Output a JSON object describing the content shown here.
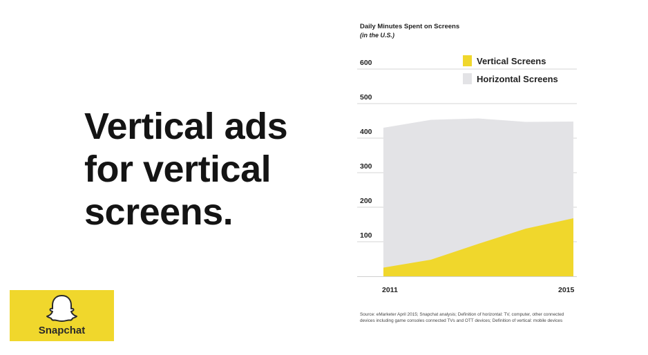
{
  "headline": {
    "lines": [
      "Vertical ads",
      "for vertical",
      "screens."
    ]
  },
  "logo": {
    "label": "Snapchat",
    "icon": "ghost-icon",
    "background": "#f0d72c"
  },
  "chart_data": {
    "type": "area",
    "title": "Daily Minutes Spent on Screens",
    "subtitle": "(in the U.S.)",
    "x": [
      2011,
      2012,
      2013,
      2014,
      2015
    ],
    "x_tick_labels": [
      "2011",
      "2015"
    ],
    "y_ticks": [
      100,
      200,
      300,
      400,
      500,
      600
    ],
    "y_tick_labels": [
      "100",
      "200",
      "300",
      "400",
      "500",
      "600"
    ],
    "ylim": [
      0,
      650
    ],
    "xlim": [
      2011,
      2015
    ],
    "grid": "horizontal",
    "legend_placement": "top-right",
    "series": [
      {
        "name": "Horizontal Screens",
        "values": [
          430,
          453,
          457,
          447,
          448
        ],
        "color": "#e3e3e6"
      },
      {
        "name": "Vertical Screens",
        "values": [
          25,
          48,
          94,
          138,
          168
        ],
        "color": "#f0d72c"
      }
    ]
  },
  "source_note": "Source: eMarketer April 2015; Snapchat analysis; Definition of horizontal: TV, computer, other connected devices including game consoles connected TVs and OTT devices; Definition of vertical: mobile devices"
}
